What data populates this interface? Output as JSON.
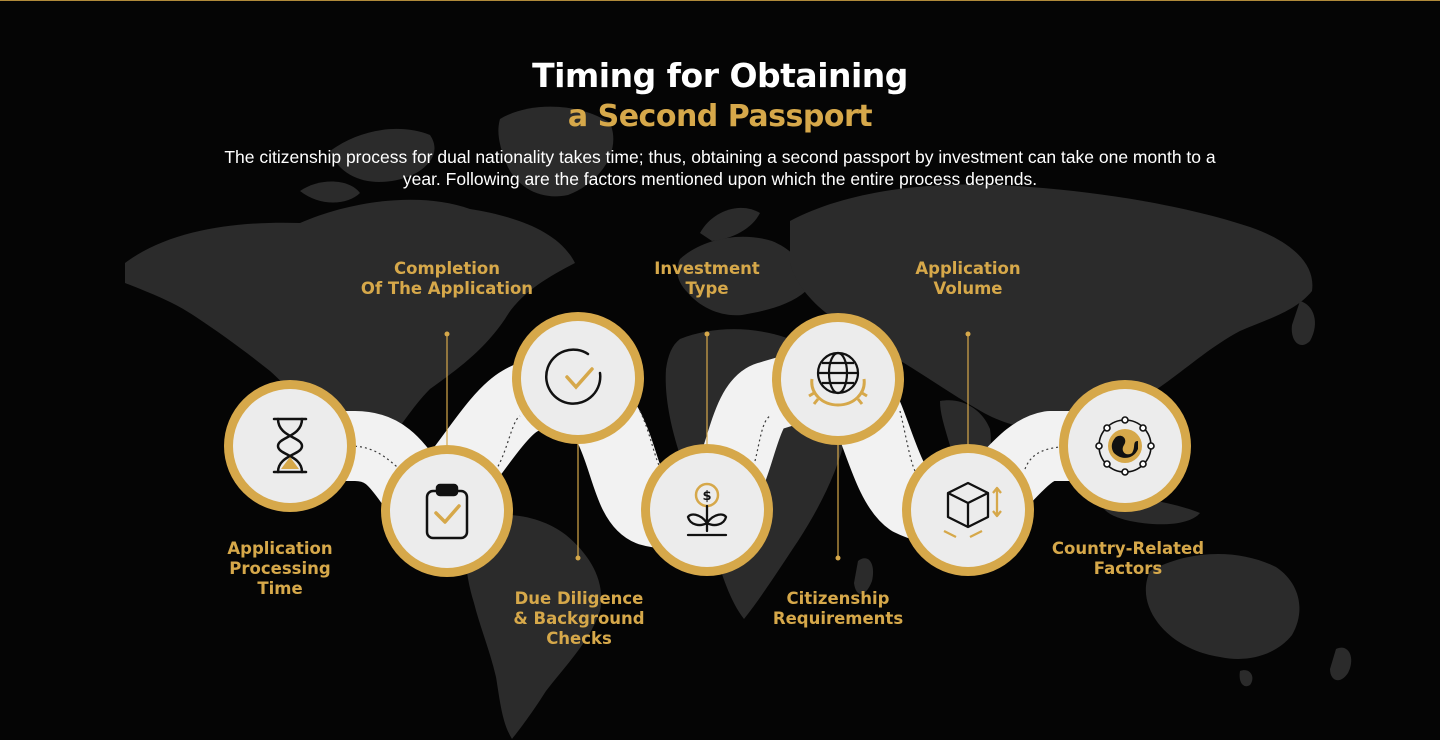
{
  "header": {
    "title": "Timing for Obtaining",
    "subtitle": "a Second Passport",
    "description": "The citizenship process for dual nationality takes time; thus, obtaining a second passport by investment can take one month to a year. Following are the factors mentioned upon which the entire process depends."
  },
  "colors": {
    "background": "#050505",
    "gold": "#d6a84a",
    "circle_fill": "#efefef",
    "ribbon": "#f2f2f2",
    "map": "#2b2b2b"
  },
  "factors": [
    {
      "label": "Application\nProcessing\nTime",
      "icon": "hourglass-icon"
    },
    {
      "label": "Completion\nOf The Application",
      "icon": "clipboard-check-icon"
    },
    {
      "label": "Due Diligence\n& Background\nChecks",
      "icon": "circle-check-icon"
    },
    {
      "label": "Investment\nType",
      "icon": "money-plant-icon"
    },
    {
      "label": "Citizenship\nRequirements",
      "icon": "globe-laurel-icon"
    },
    {
      "label": "Application\nVolume",
      "icon": "box-dimensions-icon"
    },
    {
      "label": "Country-Related\nFactors",
      "icon": "earth-network-icon"
    }
  ]
}
